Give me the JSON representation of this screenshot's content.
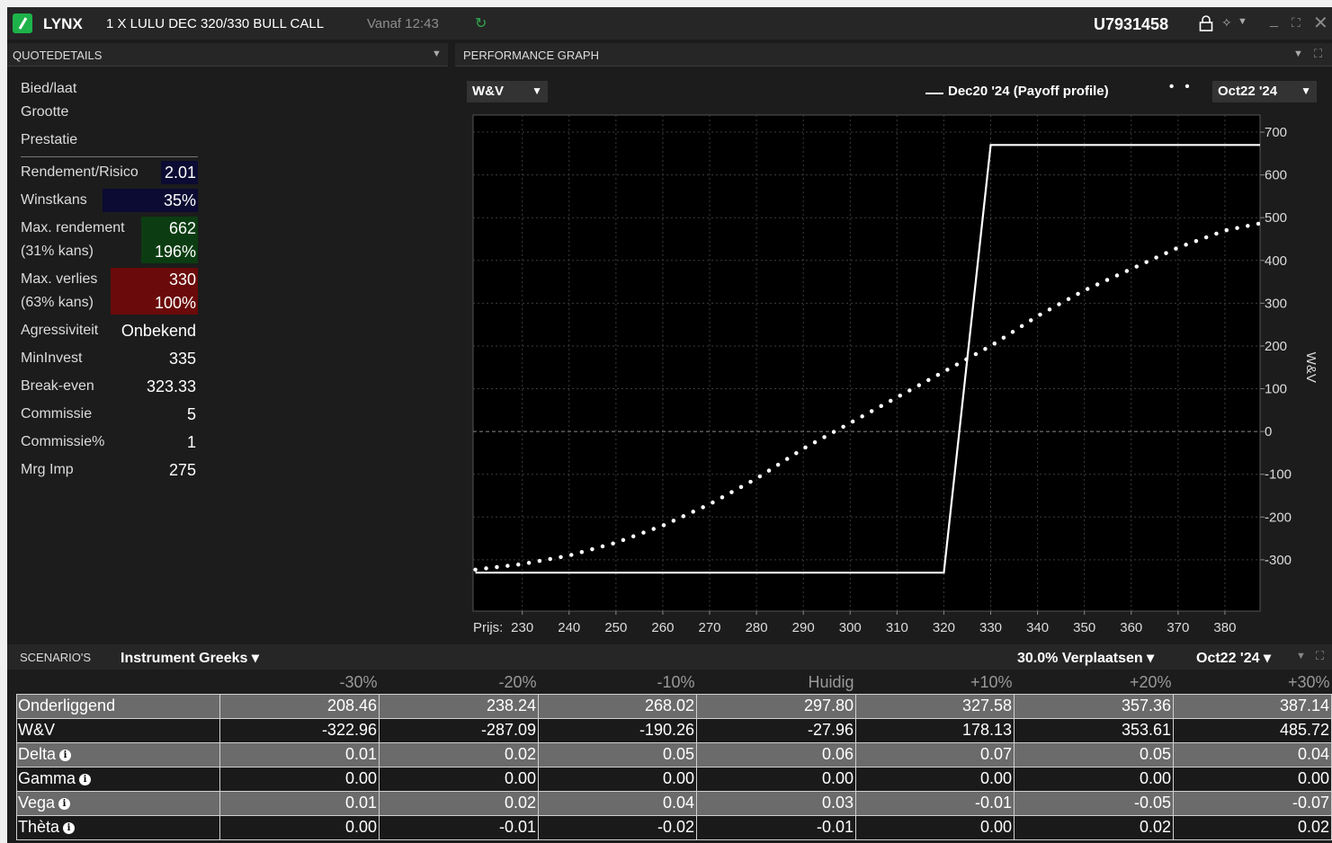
{
  "titlebar": {
    "brand": "LYNX",
    "instrument": "1 X LULU DEC 320/330 BULL CALL",
    "since": "Vanaf 12:43",
    "account": "U7931458",
    "refresh_icon": "↻",
    "pin_icon": "✧",
    "caret": "▼",
    "minimize": "_",
    "maximize": "⛶",
    "close": "✕"
  },
  "quote_details": {
    "title": "QUOTEDETAILS",
    "menu": "▼",
    "bid_ask": "Bied/laat",
    "size": "Grootte",
    "performance": "Prestatie",
    "rows": [
      {
        "label": "Rendement/Risico",
        "value": "2.01"
      },
      {
        "label": "Winstkans",
        "value": "35%"
      },
      {
        "label": "Max. rendement",
        "value": "662"
      },
      {
        "label": "(31% kans)",
        "value": "196%"
      },
      {
        "label": "Max. verlies",
        "value": "330"
      },
      {
        "label": "(63% kans)",
        "value": "100%"
      },
      {
        "label": "Agressiviteit",
        "value": "Onbekend"
      },
      {
        "label": "MinInvest",
        "value": "335"
      },
      {
        "label": "Break-even",
        "value": "323.33"
      },
      {
        "label": "Commissie",
        "value": "5"
      },
      {
        "label": "Commissie%",
        "value": "1"
      },
      {
        "label": "Mrg Imp",
        "value": "275"
      }
    ],
    "colors": {
      "dark_blue": "#0b0b33",
      "green": "#0c3d12",
      "red": "#6b0a0a"
    }
  },
  "performance_graph": {
    "title": "PERFORMANCE GRAPH",
    "menu": "▼",
    "expand": "⛶",
    "metric": "W&V",
    "legend_label": "Dec20 '24 (Payoff profile)",
    "legend_dots": "• •",
    "date": "Oct22 '24",
    "caret": "▼"
  },
  "chart_data": {
    "type": "line",
    "xlabel": "Prijs:",
    "ylabel": "W&V",
    "xlim": [
      219.5,
      387.5
    ],
    "ylim": [
      -420,
      740
    ],
    "x_ticks": [
      230,
      240,
      250,
      260,
      270,
      280,
      290,
      300,
      310,
      320,
      330,
      340,
      350,
      360,
      370,
      380
    ],
    "y_ticks": [
      700,
      600,
      500,
      400,
      300,
      200,
      100,
      0,
      -100,
      -200,
      -300
    ],
    "grid": true,
    "series": [
      {
        "name": "Dec20 '24 (Payoff profile)",
        "style": "solid",
        "x": [
          220,
          320,
          330,
          389
        ],
        "y": [
          -330,
          -330,
          670,
          670
        ]
      },
      {
        "name": "Oct22 '24",
        "style": "dotted",
        "x": [
          220,
          230,
          240,
          250,
          260,
          270,
          280,
          290,
          300,
          310,
          320,
          330,
          340,
          350,
          360,
          370,
          380,
          389
        ],
        "y": [
          -323,
          -310,
          -290,
          -260,
          -220,
          -170,
          -110,
          -40,
          20,
          80,
          140,
          200,
          270,
          330,
          380,
          430,
          470,
          490
        ]
      }
    ],
    "colors": {
      "line": "#ffffff",
      "grid": "#3c3c3c",
      "background": "#000000"
    }
  },
  "scenarios": {
    "title": "SCENARIO'S",
    "view": "Instrument Greeks ▾",
    "move": "30.0% Verplaatsen ▾",
    "date": "Oct22 '24 ▾",
    "caret": "▼",
    "expand": "⛶",
    "columns": [
      "-30%",
      "-20%",
      "-10%",
      "Huidig",
      "+10%",
      "+20%",
      "+30%"
    ],
    "rows": [
      {
        "label": "Onderliggend",
        "info": false,
        "values": [
          "208.46",
          "238.24",
          "268.02",
          "297.80",
          "327.58",
          "357.36",
          "387.14"
        ]
      },
      {
        "label": "W&V",
        "info": false,
        "values": [
          "-322.96",
          "-287.09",
          "-190.26",
          "-27.96",
          "178.13",
          "353.61",
          "485.72"
        ]
      },
      {
        "label": "Delta",
        "info": true,
        "values": [
          "0.01",
          "0.02",
          "0.05",
          "0.06",
          "0.07",
          "0.05",
          "0.04"
        ]
      },
      {
        "label": "Gamma",
        "info": true,
        "values": [
          "0.00",
          "0.00",
          "0.00",
          "0.00",
          "0.00",
          "0.00",
          "0.00"
        ]
      },
      {
        "label": "Vega",
        "info": true,
        "values": [
          "0.01",
          "0.02",
          "0.04",
          "0.03",
          "-0.01",
          "-0.05",
          "-0.07"
        ]
      },
      {
        "label": "Thèta",
        "info": true,
        "values": [
          "0.00",
          "-0.01",
          "-0.02",
          "-0.01",
          "0.00",
          "0.02",
          "0.02"
        ]
      }
    ],
    "info_icon": "i"
  }
}
